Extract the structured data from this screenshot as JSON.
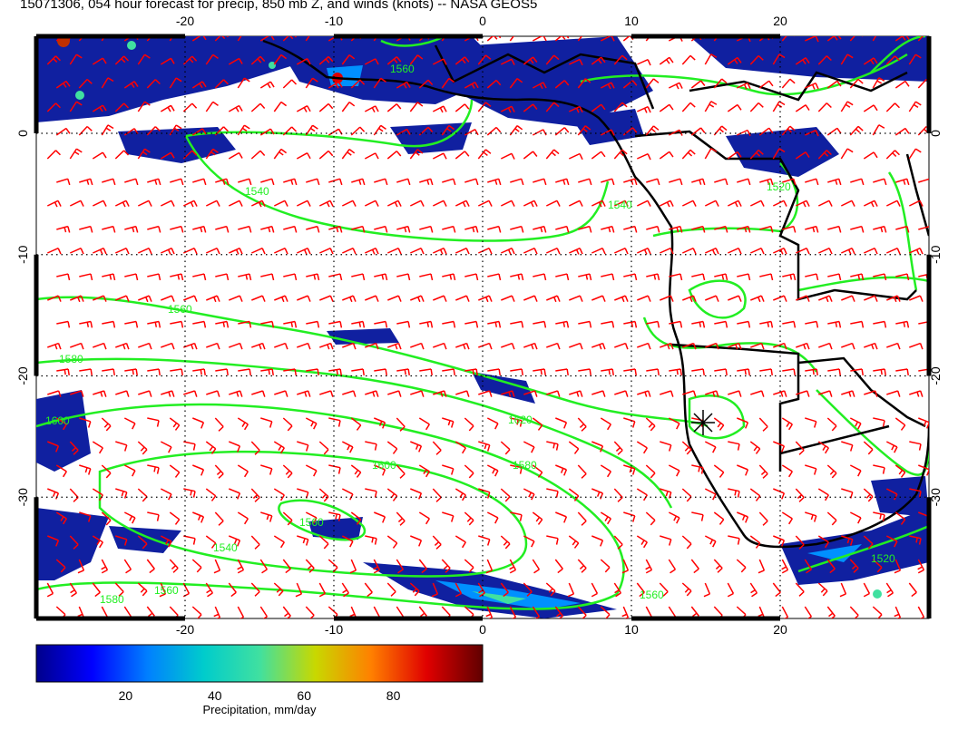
{
  "title": "15071306, 054 hour forecast for precip, 850 mb Z, and winds (knots) -- NASA GEOS5",
  "map": {
    "lon_range": [
      -30,
      30
    ],
    "lat_range": [
      -40,
      8
    ],
    "lon_ticks": [
      "-20",
      "-10",
      "0",
      "10",
      "20"
    ],
    "lat_ticks": [
      "0",
      "-10",
      "-20",
      "-30"
    ],
    "gridlines": true,
    "contour_color": "#22ee22",
    "barb_color": "#ff0000",
    "coast_color": "#000000",
    "contour_labels": [
      "1560",
      "1540",
      "1560",
      "1580",
      "1600",
      "1620",
      "1600",
      "1580",
      "1560",
      "1540",
      "1560",
      "1580",
      "1560",
      "1540",
      "1520",
      "1520"
    ],
    "contour_levels_shown": [
      1520,
      1540,
      1560,
      1580,
      1600,
      1620
    ]
  },
  "colorbar": {
    "label": "Precipitation, mm/day",
    "ticks": [
      "20",
      "40",
      "60",
      "80"
    ],
    "range": [
      0,
      100
    ],
    "colors": [
      "#00008b",
      "#0000ff",
      "#0080ff",
      "#00cccc",
      "#40e0a0",
      "#c8d800",
      "#ff8000",
      "#e00000",
      "#600000"
    ]
  }
}
